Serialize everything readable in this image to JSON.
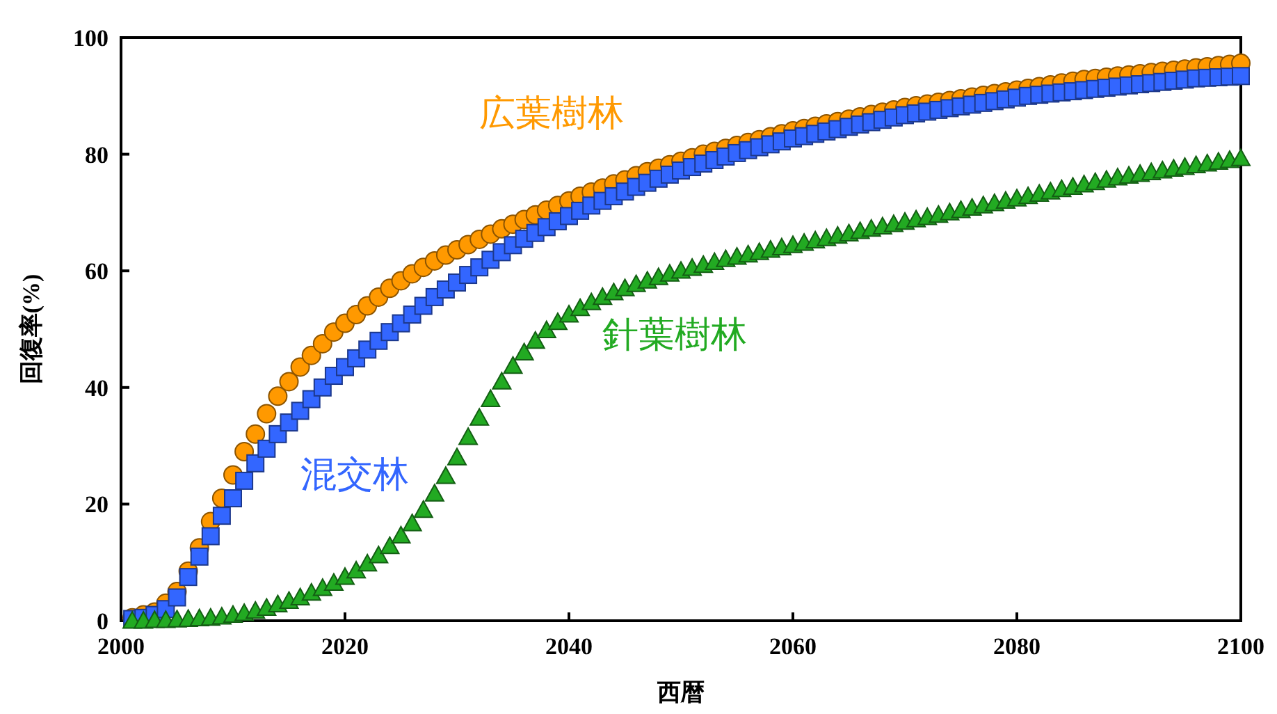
{
  "chart_data": {
    "type": "scatter",
    "xlabel": "西暦",
    "ylabel": "回復率(%)",
    "xlim": [
      2000,
      2100
    ],
    "ylim": [
      0,
      100
    ],
    "xticks": [
      2000,
      2020,
      2040,
      2060,
      2080,
      2100
    ],
    "yticks": [
      0,
      20,
      40,
      60,
      80,
      100
    ],
    "x": [
      2001,
      2002,
      2003,
      2004,
      2005,
      2006,
      2007,
      2008,
      2009,
      2010,
      2011,
      2012,
      2013,
      2014,
      2015,
      2016,
      2017,
      2018,
      2019,
      2020,
      2021,
      2022,
      2023,
      2024,
      2025,
      2026,
      2027,
      2028,
      2029,
      2030,
      2031,
      2032,
      2033,
      2034,
      2035,
      2036,
      2037,
      2038,
      2039,
      2040,
      2041,
      2042,
      2043,
      2044,
      2045,
      2046,
      2047,
      2048,
      2049,
      2050,
      2051,
      2052,
      2053,
      2054,
      2055,
      2056,
      2057,
      2058,
      2059,
      2060,
      2061,
      2062,
      2063,
      2064,
      2065,
      2066,
      2067,
      2068,
      2069,
      2070,
      2071,
      2072,
      2073,
      2074,
      2075,
      2076,
      2077,
      2078,
      2079,
      2080,
      2081,
      2082,
      2083,
      2084,
      2085,
      2086,
      2087,
      2088,
      2089,
      2090,
      2091,
      2092,
      2093,
      2094,
      2095,
      2096,
      2097,
      2098,
      2099,
      2100
    ],
    "series": [
      {
        "name": "広葉樹林",
        "color": "#ff9900",
        "marker": "circle",
        "values": [
          0.5,
          1,
          1.5,
          3,
          5,
          8.5,
          12.5,
          17,
          21,
          25,
          29,
          32,
          35.5,
          38.5,
          41,
          43.5,
          45.5,
          47.5,
          49.5,
          51,
          52.5,
          54,
          55.5,
          57,
          58.3,
          59.5,
          60.6,
          61.7,
          62.7,
          63.6,
          64.5,
          65.4,
          66.3,
          67.2,
          68,
          68.8,
          69.6,
          70.4,
          71.2,
          72,
          72.8,
          73.5,
          74.2,
          74.9,
          75.6,
          76.3,
          77,
          77.6,
          78.2,
          78.8,
          79.4,
          80,
          80.5,
          81,
          81.5,
          82,
          82.5,
          83,
          83.5,
          84,
          84.4,
          84.8,
          85.2,
          85.6,
          86,
          86.4,
          86.8,
          87.2,
          87.6,
          88,
          88.3,
          88.6,
          88.9,
          89.2,
          89.5,
          89.8,
          90.1,
          90.4,
          90.7,
          91,
          91.3,
          91.6,
          91.9,
          92.2,
          92.5,
          92.8,
          93,
          93.2,
          93.4,
          93.6,
          93.8,
          94,
          94.2,
          94.4,
          94.6,
          94.8,
          95,
          95.2,
          95.4,
          95.6
        ]
      },
      {
        "name": "混交林",
        "color": "#3366ff",
        "marker": "square",
        "values": [
          0.3,
          0.5,
          1,
          2,
          4,
          7.5,
          11,
          14.5,
          18,
          21,
          24,
          27,
          29.5,
          32,
          34,
          36,
          38,
          40,
          42,
          43.5,
          45,
          46.5,
          48,
          49.5,
          51,
          52.5,
          54,
          55.5,
          56.8,
          58,
          59.3,
          60.6,
          61.9,
          63.2,
          64.4,
          65.5,
          66.5,
          67.5,
          68.5,
          69.4,
          70.3,
          71.2,
          72,
          72.8,
          73.6,
          74.4,
          75.1,
          75.8,
          76.5,
          77.2,
          77.8,
          78.4,
          79,
          79.6,
          80.2,
          80.7,
          81.2,
          81.7,
          82.2,
          82.7,
          83.1,
          83.5,
          83.9,
          84.3,
          84.7,
          85.1,
          85.5,
          85.9,
          86.3,
          86.7,
          87,
          87.3,
          87.6,
          87.9,
          88.2,
          88.5,
          88.8,
          89.1,
          89.4,
          89.7,
          90,
          90.2,
          90.4,
          90.6,
          90.8,
          91,
          91.2,
          91.4,
          91.6,
          91.8,
          92,
          92.2,
          92.4,
          92.6,
          92.8,
          93,
          93.1,
          93.2,
          93.3,
          93.4
        ]
      },
      {
        "name": "針葉樹林",
        "color": "#22aa22",
        "marker": "triangle",
        "values": [
          0,
          0,
          0.1,
          0.1,
          0.2,
          0.3,
          0.4,
          0.5,
          0.7,
          1,
          1.3,
          1.7,
          2.2,
          2.8,
          3.4,
          4,
          4.8,
          5.6,
          6.5,
          7.5,
          8.6,
          9.8,
          11.2,
          12.8,
          14.6,
          16.7,
          19,
          21.8,
          24.8,
          28,
          31.5,
          34.8,
          38,
          41,
          43.7,
          46,
          48,
          49.8,
          51.2,
          52.5,
          53.6,
          54.6,
          55.5,
          56.3,
          57,
          57.7,
          58.3,
          58.9,
          59.5,
          60,
          60.5,
          61,
          61.5,
          62,
          62.4,
          62.8,
          63.2,
          63.6,
          64,
          64.4,
          64.8,
          65.2,
          65.6,
          66,
          66.4,
          66.8,
          67.2,
          67.6,
          68,
          68.4,
          68.8,
          69.2,
          69.6,
          70,
          70.4,
          70.8,
          71.2,
          71.6,
          72,
          72.4,
          72.8,
          73.2,
          73.6,
          74,
          74.4,
          74.8,
          75.2,
          75.6,
          76,
          76.3,
          76.6,
          76.9,
          77.2,
          77.5,
          77.8,
          78.1,
          78.4,
          78.7,
          79,
          79.3
        ]
      }
    ]
  }
}
